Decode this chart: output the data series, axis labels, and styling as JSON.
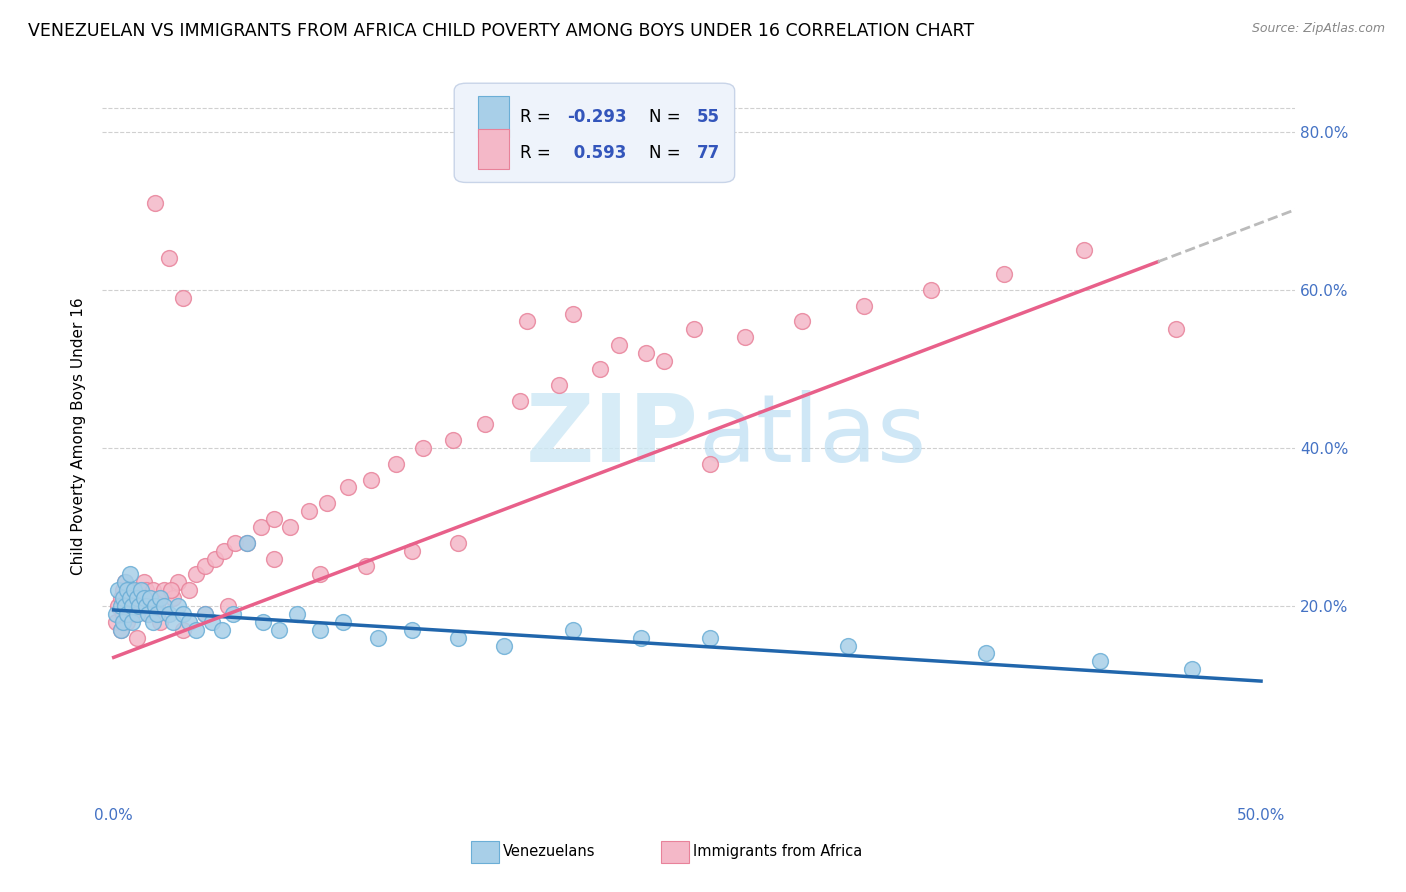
{
  "title": "VENEZUELAN VS IMMIGRANTS FROM AFRICA CHILD POVERTY AMONG BOYS UNDER 16 CORRELATION CHART",
  "source": "Source: ZipAtlas.com",
  "ylabel": "Child Poverty Among Boys Under 16",
  "xlim": [
    -0.005,
    0.515
  ],
  "ylim": [
    -0.05,
    0.88
  ],
  "xtick_vals": [
    0.0,
    0.5
  ],
  "xticklabels": [
    "0.0%",
    "50.0%"
  ],
  "ytick_vals": [
    0.2,
    0.4,
    0.6,
    0.8
  ],
  "yticklabels": [
    "20.0%",
    "40.0%",
    "60.0%",
    "80.0%"
  ],
  "blue_dot_color": "#a8cfe8",
  "blue_dot_edge": "#6baed6",
  "pink_dot_color": "#f4b8c8",
  "pink_dot_edge": "#e8829a",
  "blue_line_color": "#2166ac",
  "pink_line_color": "#e8608a",
  "dash_line_color": "#bbbbbb",
  "watermark_color": "#cde8f5",
  "title_fontsize": 12.5,
  "axis_label_fontsize": 11,
  "tick_fontsize": 11,
  "legend_fontsize": 12,
  "ven_slope": -0.18,
  "ven_intercept": 0.195,
  "afr_slope": 1.1,
  "afr_intercept": 0.135,
  "venezuelan_x": [
    0.001,
    0.002,
    0.003,
    0.003,
    0.004,
    0.004,
    0.005,
    0.005,
    0.006,
    0.006,
    0.007,
    0.007,
    0.008,
    0.008,
    0.009,
    0.01,
    0.01,
    0.011,
    0.012,
    0.013,
    0.014,
    0.015,
    0.016,
    0.017,
    0.018,
    0.019,
    0.02,
    0.022,
    0.024,
    0.026,
    0.028,
    0.03,
    0.033,
    0.036,
    0.04,
    0.043,
    0.047,
    0.052,
    0.058,
    0.065,
    0.072,
    0.08,
    0.09,
    0.1,
    0.115,
    0.13,
    0.15,
    0.17,
    0.2,
    0.23,
    0.26,
    0.32,
    0.38,
    0.43,
    0.47
  ],
  "venezuelan_y": [
    0.19,
    0.22,
    0.2,
    0.17,
    0.21,
    0.18,
    0.23,
    0.2,
    0.22,
    0.19,
    0.24,
    0.21,
    0.2,
    0.18,
    0.22,
    0.21,
    0.19,
    0.2,
    0.22,
    0.21,
    0.2,
    0.19,
    0.21,
    0.18,
    0.2,
    0.19,
    0.21,
    0.2,
    0.19,
    0.18,
    0.2,
    0.19,
    0.18,
    0.17,
    0.19,
    0.18,
    0.17,
    0.19,
    0.28,
    0.18,
    0.17,
    0.19,
    0.17,
    0.18,
    0.16,
    0.17,
    0.16,
    0.15,
    0.17,
    0.16,
    0.16,
    0.15,
    0.14,
    0.13,
    0.12
  ],
  "africa_x": [
    0.001,
    0.002,
    0.003,
    0.003,
    0.004,
    0.004,
    0.005,
    0.005,
    0.006,
    0.006,
    0.007,
    0.007,
    0.008,
    0.009,
    0.01,
    0.011,
    0.012,
    0.013,
    0.014,
    0.015,
    0.016,
    0.017,
    0.018,
    0.019,
    0.02,
    0.022,
    0.024,
    0.026,
    0.028,
    0.03,
    0.033,
    0.036,
    0.04,
    0.044,
    0.048,
    0.053,
    0.058,
    0.064,
    0.07,
    0.077,
    0.085,
    0.093,
    0.102,
    0.112,
    0.123,
    0.135,
    0.148,
    0.162,
    0.177,
    0.194,
    0.212,
    0.232,
    0.253,
    0.275,
    0.3,
    0.327,
    0.356,
    0.388,
    0.423,
    0.463,
    0.18,
    0.2,
    0.22,
    0.24,
    0.26,
    0.15,
    0.13,
    0.11,
    0.09,
    0.07,
    0.05,
    0.04,
    0.03,
    0.025,
    0.02,
    0.015,
    0.01
  ],
  "africa_y": [
    0.18,
    0.2,
    0.21,
    0.17,
    0.22,
    0.19,
    0.2,
    0.23,
    0.21,
    0.18,
    0.22,
    0.2,
    0.19,
    0.21,
    0.2,
    0.22,
    0.21,
    0.23,
    0.22,
    0.2,
    0.21,
    0.22,
    0.71,
    0.2,
    0.21,
    0.22,
    0.64,
    0.21,
    0.23,
    0.59,
    0.22,
    0.24,
    0.25,
    0.26,
    0.27,
    0.28,
    0.28,
    0.3,
    0.31,
    0.3,
    0.32,
    0.33,
    0.35,
    0.36,
    0.38,
    0.4,
    0.41,
    0.43,
    0.46,
    0.48,
    0.5,
    0.52,
    0.55,
    0.54,
    0.56,
    0.58,
    0.6,
    0.62,
    0.65,
    0.55,
    0.56,
    0.57,
    0.53,
    0.51,
    0.38,
    0.28,
    0.27,
    0.25,
    0.24,
    0.26,
    0.2,
    0.19,
    0.17,
    0.22,
    0.18,
    0.19,
    0.16
  ]
}
